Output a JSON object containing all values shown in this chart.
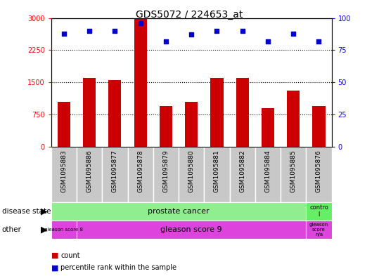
{
  "title": "GDS5072 / 224653_at",
  "samples": [
    "GSM1095883",
    "GSM1095886",
    "GSM1095877",
    "GSM1095878",
    "GSM1095879",
    "GSM1095880",
    "GSM1095881",
    "GSM1095882",
    "GSM1095884",
    "GSM1095885",
    "GSM1095876"
  ],
  "counts": [
    1050,
    1600,
    1550,
    3000,
    950,
    1050,
    1600,
    1600,
    900,
    1300,
    950
  ],
  "percentiles": [
    88,
    90,
    90,
    96,
    82,
    87,
    90,
    90,
    82,
    88,
    82
  ],
  "ylim_left": [
    0,
    3000
  ],
  "ylim_right": [
    0,
    100
  ],
  "yticks_left": [
    0,
    750,
    1500,
    2250,
    3000
  ],
  "yticks_right": [
    0,
    25,
    50,
    75,
    100
  ],
  "bar_color": "#cc0000",
  "dot_color": "#0000cc",
  "bar_width": 0.5,
  "pc_color": "#90ee90",
  "ctrl_color": "#66ee66",
  "gleason_color": "#dd44dd",
  "bg_color": "#c8c8c8",
  "legend_bar_color": "#cc0000",
  "legend_dot_color": "#0000cc"
}
